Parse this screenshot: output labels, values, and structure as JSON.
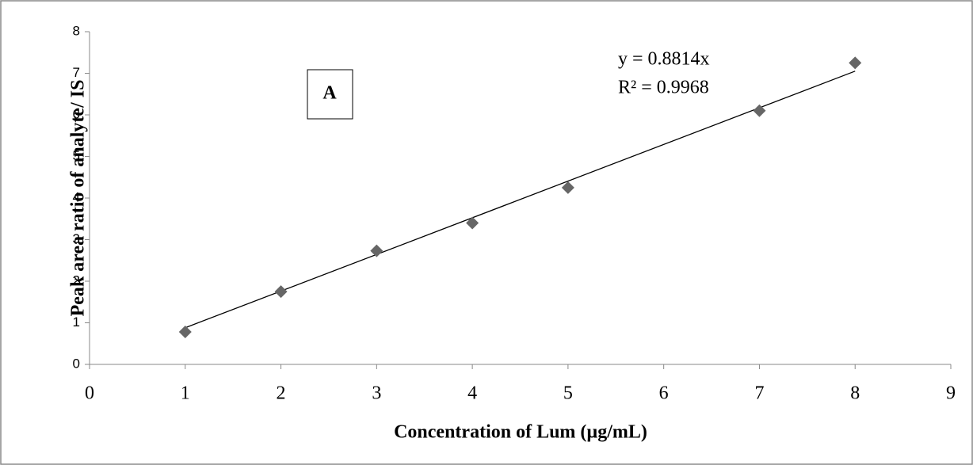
{
  "chart_data": {
    "type": "scatter",
    "panel_label": "A",
    "xlabel": "Concentration of Lum (µg/mL)",
    "ylabel": "Peak area ratio of analyte/ IS",
    "x": [
      1,
      2,
      3,
      4,
      5,
      7,
      8
    ],
    "values": [
      0.78,
      1.75,
      2.73,
      3.4,
      4.25,
      6.1,
      7.25
    ],
    "color": "#666666",
    "trendline": {
      "slope": 0.8814,
      "label": "y = 0.8814x",
      "r_squared": 0.9968,
      "r_squared_label": "R² = 0.9968"
    },
    "xlim": [
      0,
      9
    ],
    "xticks": [
      0,
      1,
      2,
      3,
      4,
      5,
      6,
      7,
      8,
      9
    ],
    "ylim": [
      0,
      8
    ],
    "yticks": [
      0,
      1,
      2,
      3,
      4,
      5,
      6,
      7,
      8
    ],
    "grid": false
  }
}
